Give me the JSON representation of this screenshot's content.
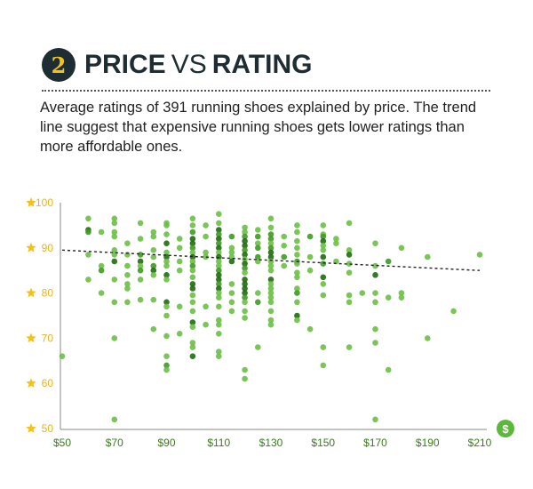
{
  "header": {
    "number": "2",
    "title_part1": "PRICE",
    "title_vs": "VS",
    "title_part2": "RATING",
    "description": "Average ratings of 391 running shoes explained by price. The trend line suggest that expensive running shoes gets lower ratings than more affordable ones."
  },
  "icons": {
    "y_axis": "star-icon",
    "x_axis": "dollar-icon"
  },
  "colors": {
    "dot_light": "#6bbf45",
    "dot_mid": "#3e9a22",
    "dot_dark": "#1f6b0e",
    "star": "#f2c21b",
    "x_label": "#3b7a1e",
    "title": "#1e2d33"
  },
  "chart_data": {
    "type": "scatter",
    "title": "PRICE VS RATING",
    "xlabel": "Price ($)",
    "ylabel": "Rating",
    "xlim": [
      50,
      210
    ],
    "ylim": [
      50,
      100
    ],
    "x_ticks": [
      "$50",
      "$70",
      "$90",
      "$110",
      "$130",
      "$150",
      "$170",
      "$190",
      "$210"
    ],
    "y_ticks": [
      "100",
      "90",
      "80",
      "70",
      "60",
      "50"
    ],
    "grid": false,
    "trend_line": {
      "style": "dashed",
      "points": [
        [
          50,
          89.5
        ],
        [
          210,
          85
        ]
      ]
    },
    "points": [
      [
        50,
        66,
        1
      ],
      [
        60,
        96.5,
        1
      ],
      [
        60,
        94,
        3
      ],
      [
        60,
        93.5,
        2
      ],
      [
        60,
        88.5,
        1
      ],
      [
        60,
        83,
        1
      ],
      [
        65,
        93.5,
        1
      ],
      [
        65,
        86,
        1
      ],
      [
        65,
        85,
        2
      ],
      [
        65,
        80,
        1
      ],
      [
        70,
        96.5,
        1
      ],
      [
        70,
        95.5,
        1
      ],
      [
        70,
        93.5,
        1
      ],
      [
        70,
        92.5,
        1
      ],
      [
        70,
        89.5,
        1
      ],
      [
        70,
        88.5,
        1
      ],
      [
        70,
        87,
        3
      ],
      [
        70,
        83,
        1
      ],
      [
        70,
        78,
        1
      ],
      [
        70,
        70,
        1
      ],
      [
        70,
        52,
        1
      ],
      [
        75,
        91,
        1
      ],
      [
        75,
        88.5,
        1
      ],
      [
        75,
        86,
        1
      ],
      [
        75,
        84,
        1
      ],
      [
        75,
        82,
        1
      ],
      [
        75,
        81,
        1
      ],
      [
        75,
        78,
        1
      ],
      [
        80,
        95.5,
        1
      ],
      [
        80,
        92,
        1
      ],
      [
        80,
        88.5,
        2
      ],
      [
        80,
        87,
        3
      ],
      [
        80,
        86,
        1
      ],
      [
        80,
        85,
        2
      ],
      [
        80,
        83,
        1
      ],
      [
        80,
        78.5,
        1
      ],
      [
        85,
        93.5,
        1
      ],
      [
        85,
        92.5,
        1
      ],
      [
        85,
        89.5,
        1
      ],
      [
        85,
        88,
        1
      ],
      [
        85,
        86,
        2
      ],
      [
        85,
        85,
        3
      ],
      [
        85,
        84,
        1
      ],
      [
        85,
        78.5,
        1
      ],
      [
        85,
        72,
        1
      ],
      [
        90,
        95.5,
        1
      ],
      [
        90,
        95,
        1
      ],
      [
        90,
        93,
        1
      ],
      [
        90,
        91,
        3
      ],
      [
        90,
        89,
        1
      ],
      [
        90,
        88,
        3
      ],
      [
        90,
        87,
        1
      ],
      [
        90,
        86,
        1
      ],
      [
        90,
        84,
        3
      ],
      [
        90,
        83,
        1
      ],
      [
        90,
        78,
        3
      ],
      [
        90,
        77,
        1
      ],
      [
        90,
        75,
        1
      ],
      [
        90,
        70.5,
        1
      ],
      [
        90,
        66,
        1
      ],
      [
        90,
        64,
        2
      ],
      [
        90,
        63,
        1
      ],
      [
        95,
        92,
        1
      ],
      [
        95,
        90,
        1
      ],
      [
        95,
        87,
        1
      ],
      [
        95,
        85,
        1
      ],
      [
        95,
        71,
        1
      ],
      [
        95,
        77,
        1
      ],
      [
        100,
        96.5,
        1
      ],
      [
        100,
        95,
        1
      ],
      [
        100,
        93.5,
        2
      ],
      [
        100,
        92,
        3
      ],
      [
        100,
        91,
        3
      ],
      [
        100,
        90,
        2
      ],
      [
        100,
        89,
        1
      ],
      [
        100,
        88,
        3
      ],
      [
        100,
        87,
        1
      ],
      [
        100,
        86,
        2
      ],
      [
        100,
        85,
        1
      ],
      [
        100,
        83.5,
        1
      ],
      [
        100,
        82,
        3
      ],
      [
        100,
        81,
        3
      ],
      [
        100,
        79.5,
        1
      ],
      [
        100,
        78,
        1
      ],
      [
        100,
        76,
        1
      ],
      [
        100,
        73.5,
        3
      ],
      [
        100,
        72.5,
        1
      ],
      [
        100,
        69,
        1
      ],
      [
        100,
        68,
        1
      ],
      [
        100,
        66,
        3
      ],
      [
        105,
        95,
        1
      ],
      [
        105,
        92.5,
        1
      ],
      [
        105,
        89,
        1
      ],
      [
        105,
        88,
        1
      ],
      [
        105,
        77,
        1
      ],
      [
        105,
        73,
        1
      ],
      [
        110,
        97.5,
        1
      ],
      [
        110,
        95.5,
        1
      ],
      [
        110,
        94,
        3
      ],
      [
        110,
        93,
        2
      ],
      [
        110,
        92,
        3
      ],
      [
        110,
        91,
        2
      ],
      [
        110,
        90,
        3
      ],
      [
        110,
        89,
        1
      ],
      [
        110,
        88,
        3
      ],
      [
        110,
        87,
        1
      ],
      [
        110,
        86,
        1
      ],
      [
        110,
        85,
        2
      ],
      [
        110,
        84,
        3
      ],
      [
        110,
        83,
        3
      ],
      [
        110,
        82,
        2
      ],
      [
        110,
        81,
        3
      ],
      [
        110,
        80,
        1
      ],
      [
        110,
        79,
        1
      ],
      [
        110,
        77,
        1
      ],
      [
        110,
        74,
        1
      ],
      [
        110,
        73,
        1
      ],
      [
        110,
        71,
        1
      ],
      [
        110,
        67,
        1
      ],
      [
        110,
        66,
        1
      ],
      [
        115,
        92.5,
        2
      ],
      [
        115,
        90,
        1
      ],
      [
        115,
        89,
        1
      ],
      [
        115,
        88,
        1
      ],
      [
        115,
        87,
        3
      ],
      [
        115,
        82,
        1
      ],
      [
        115,
        80,
        1
      ],
      [
        115,
        78,
        1
      ],
      [
        115,
        76,
        1
      ],
      [
        120,
        94.5,
        1
      ],
      [
        120,
        93.5,
        1
      ],
      [
        120,
        92.5,
        2
      ],
      [
        120,
        91.5,
        3
      ],
      [
        120,
        90.5,
        3
      ],
      [
        120,
        89.5,
        2
      ],
      [
        120,
        88.5,
        3
      ],
      [
        120,
        87.5,
        1
      ],
      [
        120,
        86.5,
        3
      ],
      [
        120,
        85.5,
        2
      ],
      [
        120,
        84.5,
        1
      ],
      [
        120,
        83,
        3
      ],
      [
        120,
        82,
        3
      ],
      [
        120,
        81,
        3
      ],
      [
        120,
        80,
        3
      ],
      [
        120,
        79,
        2
      ],
      [
        120,
        78,
        1
      ],
      [
        120,
        76,
        1
      ],
      [
        120,
        74.5,
        1
      ],
      [
        120,
        63,
        1
      ],
      [
        120,
        61,
        1
      ],
      [
        125,
        94,
        1
      ],
      [
        125,
        92.5,
        2
      ],
      [
        125,
        91,
        1
      ],
      [
        125,
        90,
        2
      ],
      [
        125,
        88,
        2
      ],
      [
        125,
        87,
        1
      ],
      [
        125,
        80,
        1
      ],
      [
        125,
        78,
        2
      ],
      [
        125,
        68,
        1
      ],
      [
        130,
        96.5,
        1
      ],
      [
        130,
        94.5,
        1
      ],
      [
        130,
        93,
        2
      ],
      [
        130,
        92,
        2
      ],
      [
        130,
        91,
        1
      ],
      [
        130,
        90,
        2
      ],
      [
        130,
        89,
        3
      ],
      [
        130,
        88,
        3
      ],
      [
        130,
        87,
        1
      ],
      [
        130,
        86,
        1
      ],
      [
        130,
        85,
        1
      ],
      [
        130,
        83,
        3
      ],
      [
        130,
        82,
        1
      ],
      [
        130,
        81,
        1
      ],
      [
        130,
        80,
        1
      ],
      [
        130,
        79,
        1
      ],
      [
        130,
        78,
        1
      ],
      [
        130,
        76,
        1
      ],
      [
        130,
        74,
        1
      ],
      [
        130,
        73,
        1
      ],
      [
        135,
        92.5,
        1
      ],
      [
        135,
        90.5,
        1
      ],
      [
        135,
        88,
        2
      ],
      [
        135,
        86,
        1
      ],
      [
        140,
        95,
        1
      ],
      [
        140,
        93.5,
        1
      ],
      [
        140,
        91.5,
        1
      ],
      [
        140,
        90,
        1
      ],
      [
        140,
        88.5,
        1
      ],
      [
        140,
        87,
        2
      ],
      [
        140,
        86.5,
        1
      ],
      [
        140,
        84.5,
        1
      ],
      [
        140,
        83.5,
        1
      ],
      [
        140,
        81,
        1
      ],
      [
        140,
        80,
        2
      ],
      [
        140,
        78,
        1
      ],
      [
        140,
        75,
        3
      ],
      [
        140,
        74,
        1
      ],
      [
        145,
        92.5,
        2
      ],
      [
        145,
        88,
        1
      ],
      [
        145,
        85,
        1
      ],
      [
        145,
        72,
        1
      ],
      [
        150,
        95,
        1
      ],
      [
        150,
        93,
        1
      ],
      [
        150,
        92.5,
        2
      ],
      [
        150,
        91.5,
        3
      ],
      [
        150,
        90.5,
        1
      ],
      [
        150,
        89.5,
        1
      ],
      [
        150,
        88,
        3
      ],
      [
        150,
        86.5,
        2
      ],
      [
        150,
        83.5,
        3
      ],
      [
        150,
        82,
        1
      ],
      [
        150,
        79.5,
        1
      ],
      [
        150,
        68,
        1
      ],
      [
        150,
        64,
        1
      ],
      [
        155,
        92,
        1
      ],
      [
        155,
        91,
        1
      ],
      [
        155,
        87,
        1
      ],
      [
        160,
        95.5,
        1
      ],
      [
        160,
        89.5,
        1
      ],
      [
        160,
        88.5,
        3
      ],
      [
        160,
        86.5,
        1
      ],
      [
        160,
        84.5,
        1
      ],
      [
        160,
        79.5,
        1
      ],
      [
        160,
        78,
        1
      ],
      [
        160,
        68,
        1
      ],
      [
        165,
        80,
        1
      ],
      [
        170,
        91,
        1
      ],
      [
        170,
        86,
        1
      ],
      [
        170,
        84,
        3
      ],
      [
        170,
        80,
        1
      ],
      [
        170,
        78,
        1
      ],
      [
        170,
        72,
        1
      ],
      [
        170,
        69,
        1
      ],
      [
        170,
        52,
        1
      ],
      [
        175,
        87,
        2
      ],
      [
        175,
        79,
        1
      ],
      [
        175,
        63,
        1
      ],
      [
        180,
        90,
        1
      ],
      [
        180,
        80,
        1
      ],
      [
        180,
        79,
        1
      ],
      [
        190,
        88,
        1
      ],
      [
        190,
        70,
        1
      ],
      [
        200,
        76,
        1
      ],
      [
        210,
        88.5,
        1
      ]
    ],
    "points_format": "[price_usd, rating, shade(1=light,2=mid,3=dark)]"
  }
}
